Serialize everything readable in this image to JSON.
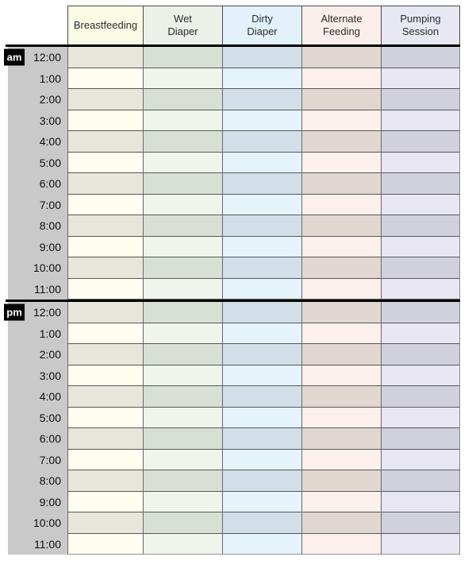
{
  "table": {
    "columns": [
      {
        "id": "breastfeeding",
        "label": "Breastfeeding",
        "header_bg": "#fbfae4",
        "row_light": "#fffdf0",
        "row_dark": "#e7e6da"
      },
      {
        "id": "wet-diaper",
        "label": "Wet\nDiaper",
        "header_bg": "#ebf1e8",
        "row_light": "#eff4ec",
        "row_dark": "#d8e0d5"
      },
      {
        "id": "dirty-diaper",
        "label": "Dirty\nDiaper",
        "header_bg": "#e2f1fa",
        "row_light": "#e5f3fb",
        "row_dark": "#d2dfe8"
      },
      {
        "id": "alternate-feeding",
        "label": "Alternate\nFeeding",
        "header_bg": "#faeeea",
        "row_light": "#fbf0ec",
        "row_dark": "#e0d7d1"
      },
      {
        "id": "pumping-session",
        "label": "Pumping\nSession",
        "header_bg": "#e8e8f2",
        "row_light": "#e7e6f1",
        "row_dark": "#d1d1dc"
      }
    ],
    "sections": [
      {
        "meridiem": "am",
        "times": [
          "12:00",
          "1:00",
          "2:00",
          "3:00",
          "4:00",
          "5:00",
          "6:00",
          "7:00",
          "8:00",
          "9:00",
          "10:00",
          "11:00"
        ]
      },
      {
        "meridiem": "pm",
        "times": [
          "12:00",
          "1:00",
          "2:00",
          "3:00",
          "4:00",
          "5:00",
          "6:00",
          "7:00",
          "8:00",
          "9:00",
          "10:00",
          "11:00"
        ]
      }
    ],
    "colors": {
      "time_column_bg": "#c9c9c9",
      "badge_bg": "#000000",
      "badge_text": "#ffffff",
      "grid_line": "#606060",
      "section_divider": "#000000",
      "header_text": "#2b2b2b",
      "time_text": "#0e0e0e"
    }
  }
}
